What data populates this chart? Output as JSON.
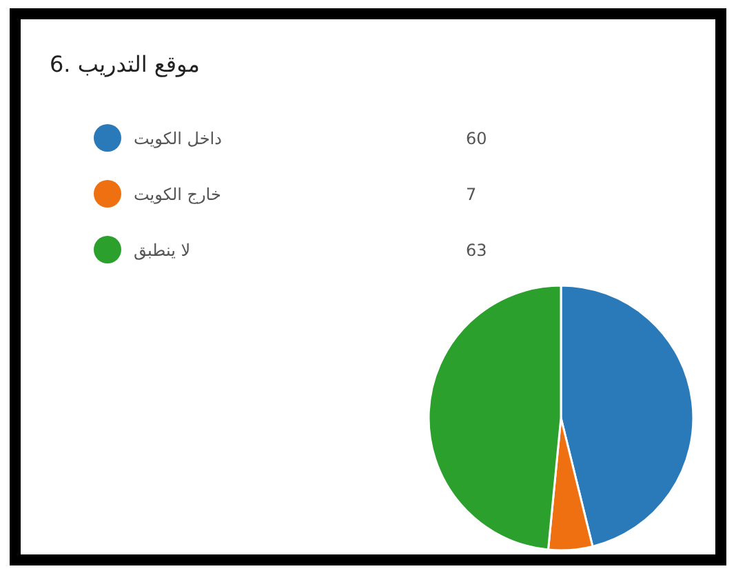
{
  "chart_data": {
    "type": "pie",
    "title": "6. موقع التدريب",
    "categories": [
      "داخل الكويت",
      "خارج الكويت",
      "لا ينطبق"
    ],
    "values": [
      60,
      7,
      63
    ],
    "colors": [
      "#2a7ab9",
      "#ef7011",
      "#2ca02c"
    ],
    "data_labels": true,
    "legend": "top left"
  }
}
